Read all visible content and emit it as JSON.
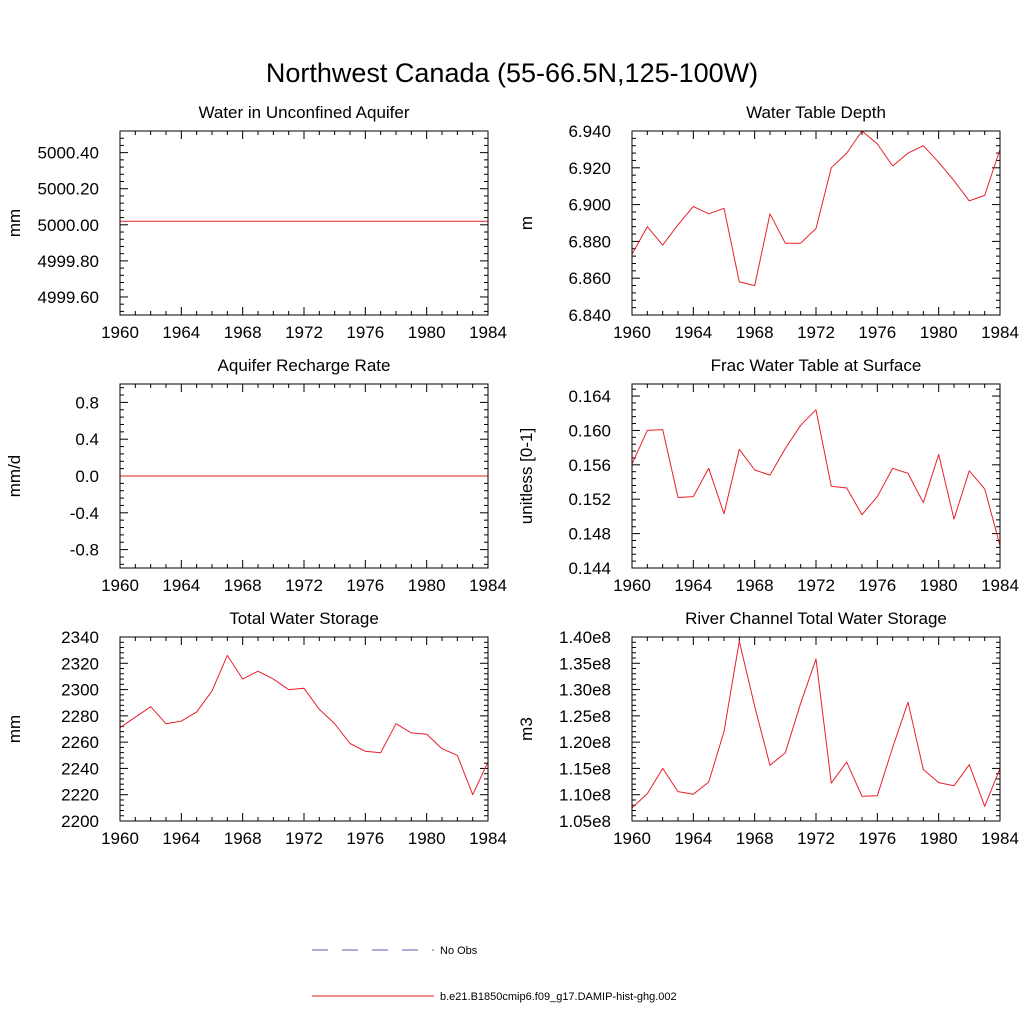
{
  "figure": {
    "title": "Northwest Canada (55-66.5N,125-100W)"
  },
  "legend": {
    "items": [
      {
        "label": "No Obs",
        "color": "#5a5aa8",
        "dash": "dashed"
      },
      {
        "label": "b.e21.B1850cmip6.f09_g17.DAMIP-hist-ghg.002",
        "color": "#e8202a",
        "dash": "solid"
      }
    ]
  },
  "chart_data": [
    {
      "type": "line",
      "title": "Water in Unconfined Aquifer",
      "xlabel": "",
      "ylabel": "mm",
      "xlim": [
        1960,
        1984
      ],
      "ylim": [
        4999.5,
        5000.52
      ],
      "xticks": [
        1960,
        1964,
        1968,
        1972,
        1976,
        1980,
        1984
      ],
      "xtick_labels": [
        "1960",
        "1964",
        "1968",
        "1972",
        "1976",
        "1980",
        "1984"
      ],
      "yticks": [
        4999.6,
        4999.8,
        5000.0,
        5000.2,
        5000.4
      ],
      "ytick_labels": [
        "4999.60",
        "4999.80",
        "5000.00",
        "5000.20",
        "5000.40"
      ],
      "minor_ystep": 0.04,
      "series": [
        {
          "color": "#e8202a",
          "x": [
            1960,
            1961,
            1962,
            1963,
            1964,
            1965,
            1966,
            1967,
            1968,
            1969,
            1970,
            1971,
            1972,
            1973,
            1974,
            1975,
            1976,
            1977,
            1978,
            1979,
            1980,
            1981,
            1982,
            1983,
            1984
          ],
          "y": [
            5000.02,
            5000.02,
            5000.02,
            5000.02,
            5000.02,
            5000.02,
            5000.02,
            5000.02,
            5000.02,
            5000.02,
            5000.02,
            5000.02,
            5000.02,
            5000.02,
            5000.02,
            5000.02,
            5000.02,
            5000.02,
            5000.02,
            5000.02,
            5000.02,
            5000.02,
            5000.02,
            5000.02,
            5000.02
          ]
        }
      ]
    },
    {
      "type": "line",
      "title": "Water Table Depth",
      "xlabel": "",
      "ylabel": "m",
      "xlim": [
        1960,
        1984
      ],
      "ylim": [
        6.84,
        6.94
      ],
      "xticks": [
        1960,
        1964,
        1968,
        1972,
        1976,
        1980,
        1984
      ],
      "xtick_labels": [
        "1960",
        "1964",
        "1968",
        "1972",
        "1976",
        "1980",
        "1984"
      ],
      "yticks": [
        6.84,
        6.86,
        6.88,
        6.9,
        6.92,
        6.94
      ],
      "ytick_labels": [
        "6.840",
        "6.860",
        "6.880",
        "6.900",
        "6.920",
        "6.940"
      ],
      "minor_ystep": 0.004,
      "series": [
        {
          "color": "#e8202a",
          "x": [
            1960,
            1961,
            1962,
            1963,
            1964,
            1965,
            1966,
            1967,
            1968,
            1969,
            1970,
            1971,
            1972,
            1973,
            1974,
            1975,
            1976,
            1977,
            1978,
            1979,
            1980,
            1981,
            1982,
            1983,
            1984
          ],
          "y": [
            6.873,
            6.888,
            6.878,
            6.889,
            6.899,
            6.895,
            6.898,
            6.858,
            6.856,
            6.895,
            6.879,
            6.879,
            6.887,
            6.92,
            6.928,
            6.94,
            6.933,
            6.921,
            6.928,
            6.932,
            6.923,
            6.913,
            6.902,
            6.905,
            6.93
          ]
        }
      ]
    },
    {
      "type": "line",
      "title": "Aquifer Recharge Rate",
      "xlabel": "",
      "ylabel": "mm/d",
      "xlim": [
        1960,
        1984
      ],
      "ylim": [
        -1.0,
        1.0
      ],
      "xticks": [
        1960,
        1964,
        1968,
        1972,
        1976,
        1980,
        1984
      ],
      "xtick_labels": [
        "1960",
        "1964",
        "1968",
        "1972",
        "1976",
        "1980",
        "1984"
      ],
      "yticks": [
        -0.8,
        -0.4,
        0.0,
        0.4,
        0.8
      ],
      "ytick_labels": [
        "-0.8",
        "-0.4",
        "0.0",
        "0.4",
        "0.8"
      ],
      "minor_ystep": 0.08,
      "series": [
        {
          "color": "#e8202a",
          "x": [
            1960,
            1961,
            1962,
            1963,
            1964,
            1965,
            1966,
            1967,
            1968,
            1969,
            1970,
            1971,
            1972,
            1973,
            1974,
            1975,
            1976,
            1977,
            1978,
            1979,
            1980,
            1981,
            1982,
            1983,
            1984
          ],
          "y": [
            0,
            0,
            0,
            0,
            0,
            0,
            0,
            0,
            0,
            0,
            0,
            0,
            0,
            0,
            0,
            0,
            0,
            0,
            0,
            0,
            0,
            0,
            0,
            0,
            0
          ]
        }
      ]
    },
    {
      "type": "line",
      "title": "Frac Water Table at Surface",
      "xlabel": "",
      "ylabel": "unitless [0-1]",
      "xlim": [
        1960,
        1984
      ],
      "ylim": [
        0.144,
        0.1654
      ],
      "xticks": [
        1960,
        1964,
        1968,
        1972,
        1976,
        1980,
        1984
      ],
      "xtick_labels": [
        "1960",
        "1964",
        "1968",
        "1972",
        "1976",
        "1980",
        "1984"
      ],
      "yticks": [
        0.144,
        0.148,
        0.152,
        0.156,
        0.16,
        0.164
      ],
      "ytick_labels": [
        "0.144",
        "0.148",
        "0.152",
        "0.156",
        "0.160",
        "0.164"
      ],
      "minor_ystep": 0.0008,
      "series": [
        {
          "color": "#e8202a",
          "x": [
            1960,
            1961,
            1962,
            1963,
            1964,
            1965,
            1966,
            1967,
            1968,
            1969,
            1970,
            1971,
            1972,
            1973,
            1974,
            1975,
            1976,
            1977,
            1978,
            1979,
            1980,
            1981,
            1982,
            1983,
            1984
          ],
          "y": [
            0.1561,
            0.16,
            0.1601,
            0.1522,
            0.1523,
            0.1556,
            0.1503,
            0.1578,
            0.1554,
            0.1548,
            0.1579,
            0.1606,
            0.1624,
            0.1535,
            0.1533,
            0.1502,
            0.1523,
            0.1556,
            0.155,
            0.1516,
            0.1572,
            0.1497,
            0.1553,
            0.1532,
            0.1466
          ]
        }
      ]
    },
    {
      "type": "line",
      "title": "Total Water Storage",
      "xlabel": "",
      "ylabel": "mm",
      "xlim": [
        1960,
        1984
      ],
      "ylim": [
        2200,
        2340
      ],
      "xticks": [
        1960,
        1964,
        1968,
        1972,
        1976,
        1980,
        1984
      ],
      "xtick_labels": [
        "1960",
        "1964",
        "1968",
        "1972",
        "1976",
        "1980",
        "1984"
      ],
      "yticks": [
        2200,
        2220,
        2240,
        2260,
        2280,
        2300,
        2320,
        2340
      ],
      "ytick_labels": [
        "2200",
        "2220",
        "2240",
        "2260",
        "2280",
        "2300",
        "2320",
        "2340"
      ],
      "minor_ystep": 4,
      "series": [
        {
          "color": "#e8202a",
          "x": [
            1960,
            1961,
            1962,
            1963,
            1964,
            1965,
            1966,
            1967,
            1968,
            1969,
            1970,
            1971,
            1972,
            1973,
            1974,
            1975,
            1976,
            1977,
            1978,
            1979,
            1980,
            1981,
            1982,
            1983,
            1984
          ],
          "y": [
            2271,
            2279,
            2287,
            2274,
            2276,
            2283,
            2299,
            2326,
            2308,
            2314,
            2308,
            2300,
            2301,
            2285,
            2274,
            2259,
            2253,
            2252,
            2274,
            2267,
            2266,
            2255,
            2250,
            2220,
            2245
          ]
        }
      ]
    },
    {
      "type": "line",
      "title": "River Channel Total Water Storage",
      "xlabel": "",
      "ylabel": "m3",
      "xlim": [
        1960,
        1984
      ],
      "ylim": [
        105000000.0,
        140000000.0
      ],
      "xticks": [
        1960,
        1964,
        1968,
        1972,
        1976,
        1980,
        1984
      ],
      "xtick_labels": [
        "1960",
        "1964",
        "1968",
        "1972",
        "1976",
        "1980",
        "1984"
      ],
      "yticks": [
        105000000.0,
        110000000.0,
        115000000.0,
        120000000.0,
        125000000.0,
        130000000.0,
        135000000.0,
        140000000.0
      ],
      "ytick_labels": [
        "1.05e8",
        "1.10e8",
        "1.15e8",
        "1.20e8",
        "1.25e8",
        "1.30e8",
        "1.35e8",
        "1.40e8"
      ],
      "minor_ystep": 1000000,
      "series": [
        {
          "color": "#e8202a",
          "x": [
            1960,
            1961,
            1962,
            1963,
            1964,
            1965,
            1966,
            1967,
            1968,
            1969,
            1970,
            1971,
            1972,
            1973,
            1974,
            1975,
            1976,
            1977,
            1978,
            1979,
            1980,
            1981,
            1982,
            1983,
            1984
          ],
          "y": [
            107500000.0,
            110200000.0,
            115000000.0,
            110600000.0,
            110100000.0,
            112400000.0,
            122000000.0,
            139200000.0,
            126800000.0,
            115600000.0,
            118000000.0,
            127400000.0,
            135800000.0,
            112200000.0,
            116200000.0,
            109700000.0,
            109800000.0,
            119000000.0,
            127600000.0,
            114800000.0,
            112300000.0,
            111700000.0,
            115700000.0,
            107800000.0,
            115000000.0
          ]
        }
      ]
    }
  ]
}
